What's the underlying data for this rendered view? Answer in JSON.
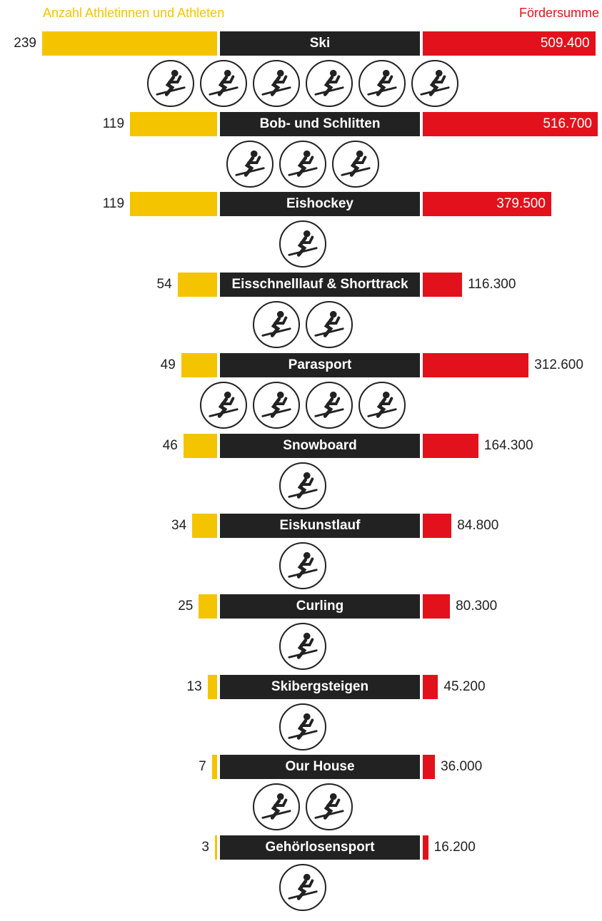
{
  "header": {
    "left": "Anzahl Athletinnen und Athleten",
    "right": "Fördersumme"
  },
  "colors": {
    "athletes": "#F5C400",
    "funding": "#E3111B",
    "label_bg": "#222222"
  },
  "chart_data": {
    "type": "bar",
    "orientation": "horizontal-diverging",
    "categories": [
      "Ski",
      "Bob- und Schlitten",
      "Eishockey",
      "Eisschnelllauf & Shorttrack",
      "Parasport",
      "Snowboard",
      "Eiskunstlauf",
      "Curling",
      "Skibergsteigen",
      "Our House",
      "Gehörlosensport"
    ],
    "series": [
      {
        "name": "Anzahl Athletinnen und Athleten",
        "values": [
          239,
          119,
          119,
          54,
          49,
          46,
          34,
          25,
          13,
          7,
          3
        ],
        "labels": [
          "239",
          "119",
          "119",
          "54",
          "49",
          "46",
          "34",
          "25",
          "13",
          "7",
          "3"
        ]
      },
      {
        "name": "Fördersumme",
        "values": [
          509400,
          516700,
          379500,
          116300,
          312600,
          164300,
          84800,
          80300,
          45200,
          36000,
          16200
        ],
        "labels": [
          "509.400",
          "516.700",
          "379.500",
          "116.300",
          "312.600",
          "164.300",
          "84.800",
          "80.300",
          "45.200",
          "36.000",
          "16.200"
        ]
      }
    ]
  },
  "rows": [
    {
      "label": "Ski",
      "count": "239",
      "amount": "509.400",
      "icons": [
        "alpine-ski-icon",
        "freestyle-ski-icon",
        "biathlon-icon",
        "cross-country-ski-icon",
        "ski-jumping-icon",
        "nordic-combined-icon"
      ]
    },
    {
      "label": "Bob- und Schlitten",
      "count": "119",
      "amount": "516.700",
      "icons": [
        "bobsleigh-icon",
        "luge-icon",
        "skeleton-icon"
      ]
    },
    {
      "label": "Eishockey",
      "count": "119",
      "amount": "379.500",
      "icons": [
        "ice-hockey-icon"
      ]
    },
    {
      "label": "Eisschnelllauf & Shorttrack",
      "count": "54",
      "amount": "116.300",
      "icons": [
        "speed-skating-icon",
        "short-track-icon"
      ]
    },
    {
      "label": "Parasport",
      "count": "49",
      "amount": "312.600",
      "icons": [
        "para-snowboard-icon",
        "para-alpine-ski-icon",
        "para-cross-country-icon",
        "para-ice-hockey-icon"
      ]
    },
    {
      "label": "Snowboard",
      "count": "46",
      "amount": "164.300",
      "icons": [
        "snowboard-icon"
      ]
    },
    {
      "label": "Eiskunstlauf",
      "count": "34",
      "amount": "84.800",
      "icons": [
        "figure-skating-icon"
      ]
    },
    {
      "label": "Curling",
      "count": "25",
      "amount": "80.300",
      "icons": [
        "curling-icon"
      ]
    },
    {
      "label": "Skibergsteigen",
      "count": "13",
      "amount": "45.200",
      "icons": [
        "ski-mountaineering-icon"
      ]
    },
    {
      "label": "Our House",
      "count": "7",
      "amount": "36.000",
      "icons": [
        "freestyle-aerials-icon",
        "snowboard-halfpipe-icon"
      ]
    },
    {
      "label": "Gehörlosensport",
      "count": "3",
      "amount": "16.200",
      "icons": [
        "deaf-ski-icon"
      ]
    }
  ]
}
